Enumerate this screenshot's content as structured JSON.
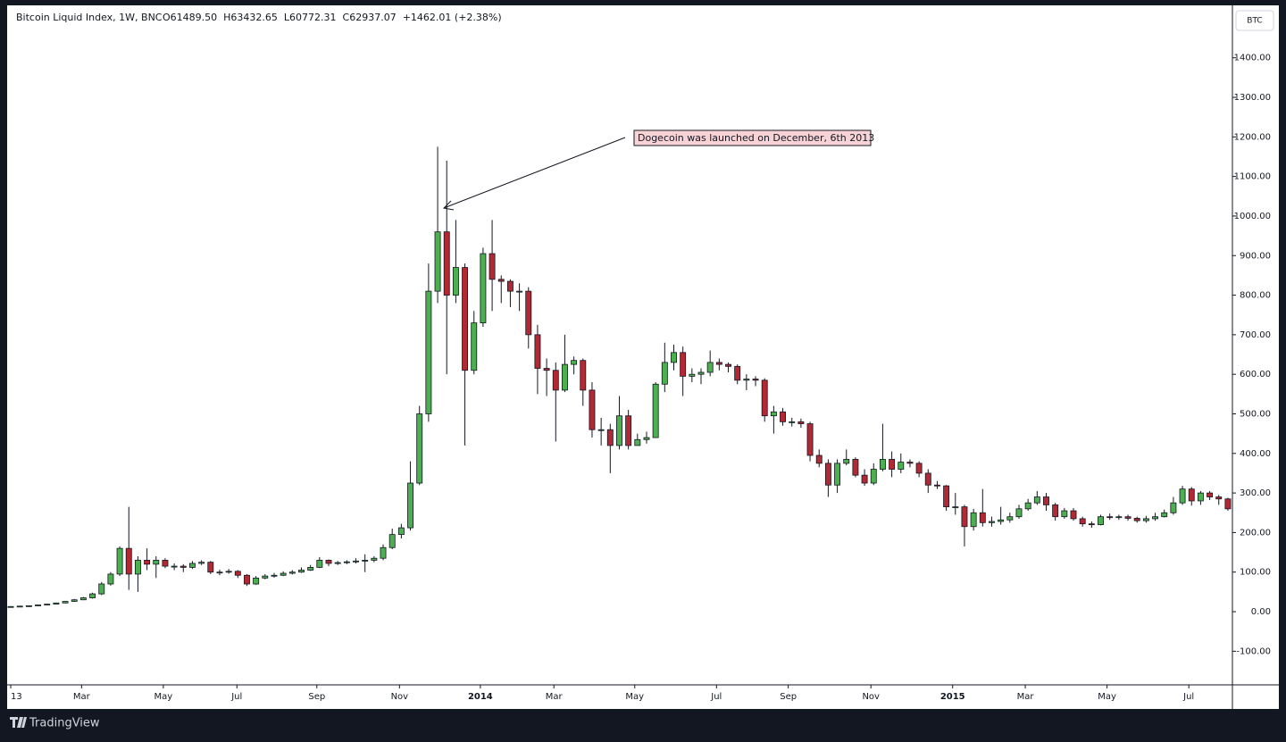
{
  "chart_data": {
    "type": "candlestick",
    "title": "Bitcoin Liquid Index, 1W, BNC",
    "legend_values": [
      "O61489.50",
      "H63432.65",
      "L60772.31",
      "C62937.07",
      "+1462.01 (+2.38%)"
    ],
    "currency_button": "BTC",
    "brand": "TradingView",
    "annotation": "Dogecoin was launched on December, 6th 2013",
    "up_color": "#4caf50",
    "down_color": "#b22833",
    "ylim": [
      -185,
      1528
    ],
    "yticks": [
      {
        "value": -100,
        "label": "-100.00"
      },
      {
        "value": 0,
        "label": "0.00"
      },
      {
        "value": 100,
        "label": "100.00"
      },
      {
        "value": 200,
        "label": "200.00"
      },
      {
        "value": 300,
        "label": "300.00"
      },
      {
        "value": 400,
        "label": "400.00"
      },
      {
        "value": 500,
        "label": "500.00"
      },
      {
        "value": 600,
        "label": "600.00"
      },
      {
        "value": 700,
        "label": "700.00"
      },
      {
        "value": 800,
        "label": "800.00"
      },
      {
        "value": 900,
        "label": "900.00"
      },
      {
        "value": 1000,
        "label": "1000.00"
      },
      {
        "value": 1100,
        "label": "1100.00"
      },
      {
        "value": 1200,
        "label": "1200.00"
      },
      {
        "value": 1300,
        "label": "1300.00"
      },
      {
        "value": 1400,
        "label": "1400.00"
      }
    ],
    "xlim": [
      -0.2,
      134.5
    ],
    "xticks": [
      {
        "value": 0,
        "label": "13"
      },
      {
        "value": 7.8,
        "label": "Mar"
      },
      {
        "value": 16.8,
        "label": "May"
      },
      {
        "value": 24.9,
        "label": "Jul"
      },
      {
        "value": 33.7,
        "label": "Sep"
      },
      {
        "value": 42.8,
        "label": "Nov"
      },
      {
        "value": 51.7,
        "label": "2014"
      },
      {
        "value": 59.8,
        "label": "Mar"
      },
      {
        "value": 68.7,
        "label": "May"
      },
      {
        "value": 77.7,
        "label": "Jul"
      },
      {
        "value": 85.6,
        "label": "Sep"
      },
      {
        "value": 94.7,
        "label": "Nov"
      },
      {
        "value": 103.7,
        "label": "2015"
      },
      {
        "value": 111.7,
        "label": "Mar"
      },
      {
        "value": 120.7,
        "label": "May"
      },
      {
        "value": 129.7,
        "label": "Jul"
      }
    ],
    "open": [
      12,
      13,
      14,
      15,
      17,
      19,
      22,
      26,
      30,
      35,
      45,
      70,
      95,
      160,
      95,
      130,
      120,
      130,
      115,
      115,
      112,
      122,
      125,
      100,
      100,
      102,
      92,
      70,
      85,
      90,
      92,
      97,
      100,
      105,
      112,
      130,
      122,
      124,
      126,
      128,
      130,
      135,
      162,
      195,
      212,
      325,
      500,
      810,
      960,
      800,
      870,
      610,
      730,
      905,
      840,
      835,
      810,
      810,
      700,
      615,
      610,
      560,
      625,
      635,
      560,
      460,
      460,
      420,
      495,
      420,
      435,
      440,
      575,
      630,
      655,
      595,
      600,
      605,
      630,
      625,
      620,
      585,
      588,
      585,
      495,
      505,
      480,
      480,
      475,
      395,
      375,
      320,
      375,
      385,
      345,
      325,
      360,
      385,
      360,
      378,
      375,
      350,
      320,
      318,
      265,
      265,
      215,
      250,
      225,
      228,
      232,
      240,
      260,
      275,
      290,
      270,
      240,
      255,
      235,
      222,
      220,
      240,
      238,
      240,
      236,
      230,
      235,
      240,
      250,
      275,
      310,
      280,
      300,
      290,
      285
    ],
    "high": [
      14,
      15,
      16,
      18,
      20,
      23,
      27,
      32,
      37,
      48,
      75,
      100,
      165,
      265,
      140,
      160,
      140,
      135,
      122,
      120,
      128,
      130,
      128,
      106,
      108,
      105,
      95,
      90,
      95,
      98,
      102,
      105,
      112,
      118,
      138,
      132,
      128,
      130,
      135,
      145,
      140,
      170,
      210,
      222,
      380,
      520,
      880,
      1175,
      1140,
      990,
      880,
      760,
      920,
      990,
      850,
      840,
      830,
      820,
      725,
      640,
      630,
      700,
      645,
      640,
      580,
      490,
      475,
      545,
      510,
      450,
      455,
      580,
      680,
      675,
      670,
      615,
      615,
      660,
      640,
      630,
      625,
      600,
      595,
      590,
      520,
      515,
      490,
      488,
      480,
      410,
      385,
      385,
      410,
      390,
      360,
      375,
      475,
      405,
      400,
      385,
      380,
      360,
      330,
      320,
      300,
      270,
      260,
      310,
      240,
      265,
      250,
      270,
      285,
      305,
      300,
      275,
      262,
      262,
      240,
      228,
      245,
      248,
      245,
      245,
      240,
      242,
      250,
      258,
      290,
      318,
      315,
      305,
      305,
      295,
      288
    ],
    "low": [
      11,
      12,
      13,
      14,
      16,
      18,
      21,
      25,
      29,
      33,
      42,
      66,
      90,
      55,
      50,
      105,
      85,
      110,
      105,
      100,
      108,
      118,
      95,
      92,
      96,
      85,
      65,
      68,
      82,
      86,
      90,
      94,
      98,
      103,
      110,
      115,
      118,
      120,
      122,
      100,
      125,
      130,
      158,
      185,
      205,
      320,
      480,
      780,
      600,
      780,
      420,
      600,
      720,
      760,
      780,
      770,
      760,
      665,
      550,
      545,
      430,
      555,
      600,
      520,
      440,
      420,
      350,
      410,
      410,
      420,
      425,
      440,
      555,
      610,
      545,
      580,
      575,
      595,
      610,
      605,
      575,
      560,
      570,
      480,
      450,
      470,
      468,
      465,
      380,
      365,
      290,
      300,
      370,
      340,
      318,
      320,
      355,
      340,
      350,
      365,
      340,
      300,
      310,
      255,
      245,
      165,
      205,
      215,
      215,
      220,
      225,
      235,
      255,
      270,
      255,
      230,
      235,
      230,
      215,
      212,
      218,
      232,
      232,
      230,
      225,
      225,
      230,
      238,
      245,
      270,
      268,
      270,
      282,
      270,
      255
    ],
    "close": [
      13,
      14,
      15,
      17,
      19,
      22,
      26,
      30,
      35,
      45,
      70,
      95,
      160,
      95,
      130,
      120,
      130,
      115,
      115,
      112,
      122,
      125,
      100,
      100,
      102,
      92,
      70,
      85,
      90,
      92,
      97,
      100,
      105,
      112,
      130,
      122,
      124,
      126,
      128,
      130,
      135,
      162,
      195,
      212,
      325,
      500,
      810,
      960,
      800,
      870,
      610,
      730,
      905,
      840,
      835,
      810,
      810,
      700,
      615,
      610,
      560,
      625,
      635,
      560,
      460,
      460,
      420,
      495,
      420,
      435,
      440,
      575,
      630,
      655,
      595,
      600,
      605,
      630,
      625,
      620,
      585,
      588,
      585,
      495,
      505,
      480,
      480,
      475,
      395,
      375,
      320,
      375,
      385,
      345,
      325,
      360,
      385,
      360,
      378,
      375,
      350,
      320,
      318,
      265,
      265,
      215,
      250,
      225,
      228,
      232,
      240,
      260,
      275,
      290,
      270,
      240,
      255,
      235,
      222,
      220,
      240,
      238,
      240,
      236,
      230,
      235,
      240,
      250,
      275,
      310,
      280,
      300,
      290,
      285,
      260
    ]
  }
}
